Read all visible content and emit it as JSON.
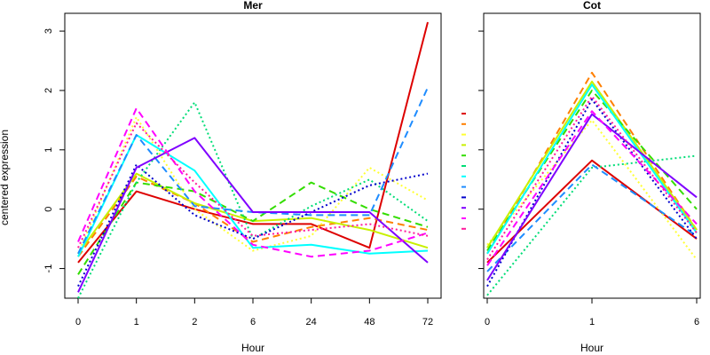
{
  "y_axis_label": "centered expression",
  "palette": [
    "#dd0000",
    "#ff7f00",
    "#ffff33",
    "#c8f000",
    "#33dd00",
    "#00dd77",
    "#00ffff",
    "#1e8cff",
    "#0000cc",
    "#7f00ff",
    "#ff00ff",
    "#ff1a9c"
  ],
  "chart_data": [
    {
      "type": "line",
      "title": "Mer",
      "xlabel": "Hour",
      "ylabel": "centered expression",
      "categories": [
        "0",
        "1",
        "2",
        "6",
        "24",
        "48",
        "72"
      ],
      "ylim": [
        -1.5,
        3.3
      ],
      "yticks": [
        -1,
        0,
        1,
        2,
        3
      ],
      "grid": false,
      "series": [
        {
          "color": "#dd0000",
          "dash": "solid",
          "values": [
            -0.9,
            0.3,
            0.0,
            -0.25,
            -0.25,
            -0.65,
            3.15
          ]
        },
        {
          "color": "#ff7f00",
          "dash": "dashed",
          "values": [
            -0.8,
            0.55,
            0.1,
            -0.55,
            -0.3,
            -0.15,
            -0.35
          ]
        },
        {
          "color": "#ffff33",
          "dash": "dotted",
          "values": [
            -0.75,
            1.55,
            0.0,
            -0.7,
            -0.45,
            0.7,
            0.15
          ]
        },
        {
          "color": "#c8f000",
          "dash": "solid",
          "values": [
            -0.75,
            0.6,
            0.1,
            -0.2,
            -0.15,
            -0.35,
            -0.65
          ]
        },
        {
          "color": "#33dd00",
          "dash": "dashed",
          "values": [
            -1.1,
            0.45,
            0.3,
            -0.2,
            0.45,
            0.0,
            -0.3
          ]
        },
        {
          "color": "#00dd77",
          "dotted": true,
          "dash": "dotted",
          "values": [
            -1.5,
            0.45,
            1.8,
            -0.5,
            0.05,
            0.5,
            -0.2
          ]
        },
        {
          "color": "#00ffff",
          "dash": "solid",
          "values": [
            -0.8,
            1.25,
            0.65,
            -0.65,
            -0.6,
            -0.75,
            -0.7
          ]
        },
        {
          "color": "#1e8cff",
          "dash": "dashed",
          "values": [
            -0.75,
            1.25,
            0.05,
            -0.05,
            -0.1,
            -0.1,
            2.05
          ]
        },
        {
          "color": "#0000cc",
          "dash": "dotted",
          "values": [
            -1.3,
            0.75,
            -0.1,
            -0.5,
            -0.05,
            0.4,
            0.6
          ]
        },
        {
          "color": "#7f00ff",
          "dash": "solid",
          "values": [
            -1.4,
            0.7,
            1.2,
            -0.05,
            -0.05,
            -0.05,
            -0.9
          ]
        },
        {
          "color": "#ff00ff",
          "dash": "dashed",
          "values": [
            -0.55,
            1.7,
            0.3,
            -0.6,
            -0.8,
            -0.7,
            -0.4
          ]
        },
        {
          "color": "#ff1a9c",
          "dash": "dotted",
          "values": [
            -0.65,
            1.45,
            0.45,
            -0.45,
            -0.35,
            -0.25,
            -0.45
          ]
        }
      ]
    },
    {
      "type": "line",
      "title": "Cot",
      "xlabel": "Hour",
      "ylabel": "",
      "categories": [
        "0",
        "1",
        "6"
      ],
      "ylim": [
        -1.5,
        3.3
      ],
      "yticks": [
        -1,
        0,
        1,
        2,
        3
      ],
      "grid": false,
      "series": [
        {
          "color": "#dd0000",
          "dash": "solid",
          "values": [
            -0.9,
            0.82,
            -0.5
          ]
        },
        {
          "color": "#ff7f00",
          "dash": "dashed",
          "values": [
            -0.75,
            2.3,
            -0.35
          ]
        },
        {
          "color": "#ffff33",
          "dash": "dotted",
          "values": [
            -0.6,
            1.5,
            -0.85
          ]
        },
        {
          "color": "#c8f000",
          "dash": "solid",
          "values": [
            -0.65,
            2.15,
            -0.35
          ]
        },
        {
          "color": "#33dd00",
          "dash": "dashed",
          "values": [
            -0.7,
            2.0,
            0.0
          ]
        },
        {
          "color": "#00dd77",
          "dash": "dotted",
          "values": [
            -1.45,
            0.7,
            0.9
          ]
        },
        {
          "color": "#00ffff",
          "dash": "solid",
          "values": [
            -0.75,
            2.1,
            -0.4
          ]
        },
        {
          "color": "#1e8cff",
          "dash": "dashed",
          "values": [
            -1.05,
            0.75,
            -0.45
          ]
        },
        {
          "color": "#0000cc",
          "dash": "dotted",
          "values": [
            -1.3,
            1.85,
            -0.5
          ]
        },
        {
          "color": "#7f00ff",
          "dash": "solid",
          "values": [
            -1.2,
            1.6,
            0.2
          ]
        },
        {
          "color": "#ff00ff",
          "dash": "dashed",
          "values": [
            -0.95,
            1.65,
            -0.25
          ]
        },
        {
          "color": "#ff1a9c",
          "dash": "dotted",
          "values": [
            -0.85,
            1.9,
            -0.4
          ]
        }
      ]
    }
  ]
}
